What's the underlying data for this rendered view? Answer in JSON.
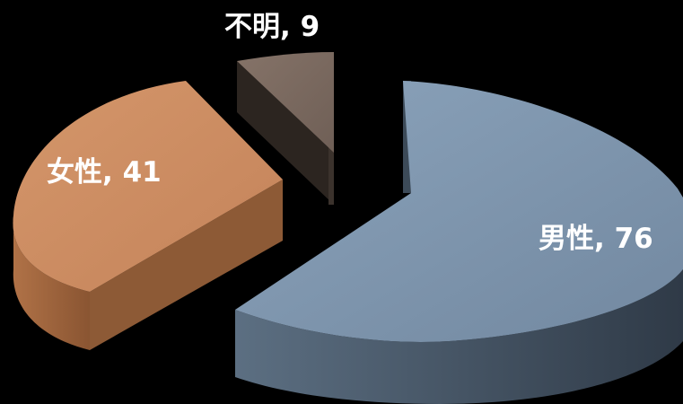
{
  "chart_data": {
    "type": "pie",
    "style": "3d-exploded",
    "slices": [
      {
        "label": "男性",
        "value": 76,
        "text": "男性, 76",
        "color": "#7f97b0"
      },
      {
        "label": "女性",
        "value": 41,
        "text": "女性, 41",
        "color": "#cd8c5f"
      },
      {
        "label": "不明",
        "value": 9,
        "text": "不明, 9",
        "color": "#7d6b61"
      }
    ],
    "legend": "none",
    "background": "#000000"
  }
}
